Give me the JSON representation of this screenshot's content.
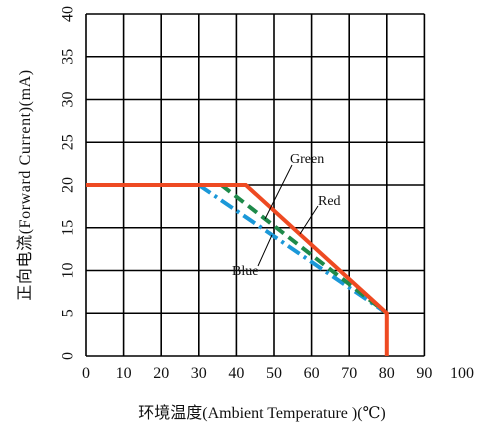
{
  "chart_data": {
    "type": "line",
    "title": "",
    "xlabel": "环境温度(Ambient Temperature )(℃)",
    "ylabel": "正向电流(Forward Current)(mA)",
    "xlim": [
      0,
      90
    ],
    "ylim": [
      0,
      40
    ],
    "xticks": [
      0,
      10,
      20,
      30,
      40,
      50,
      60,
      70,
      80,
      90,
      100
    ],
    "yticks": [
      0,
      5,
      10,
      15,
      20,
      25,
      30,
      35,
      40
    ],
    "grid": true,
    "series": [
      {
        "name": "Red",
        "color": "#ee4a22",
        "x": [
          0,
          42.5,
          80,
          80
        ],
        "y": [
          20,
          20,
          5,
          0
        ]
      },
      {
        "name": "Green",
        "color": "#1e8a4a",
        "x": [
          36,
          80
        ],
        "y": [
          20,
          5
        ]
      },
      {
        "name": "Blue",
        "color": "#1b98d8",
        "x": [
          30,
          80
        ],
        "y": [
          20,
          5
        ]
      }
    ]
  }
}
